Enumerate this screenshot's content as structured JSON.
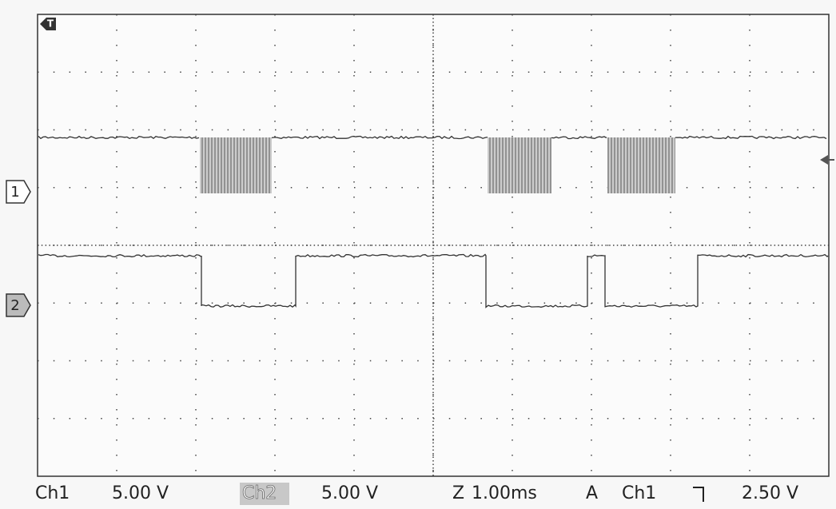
{
  "markers": {
    "trigger": "T",
    "ch1": "1",
    "ch2": "2"
  },
  "status": {
    "ch1_label": "Ch1",
    "ch1_scale": "5.00 V",
    "ch2_label": "Ch2",
    "ch2_scale": "5.00 V",
    "timebase_mode": "Z",
    "timebase": "1.00ms",
    "trigger_mode": "A",
    "trigger_source": "Ch1",
    "trigger_level": "2.50 V"
  }
}
